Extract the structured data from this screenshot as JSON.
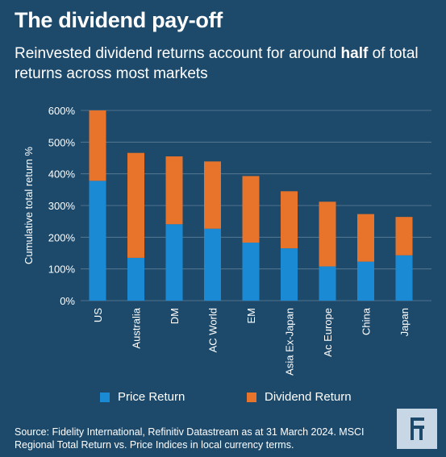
{
  "header": {
    "title": "The dividend pay-off",
    "subtitle_pre": "Reinvested dividend returns account for around ",
    "subtitle_bold": "half",
    "subtitle_post": " of total returns across most markets"
  },
  "colors": {
    "background": "#1d4a6b",
    "price": "#1a8ad4",
    "dividend": "#e8732a",
    "grid": "#5f7f97"
  },
  "chart_data": {
    "type": "bar",
    "stacked": true,
    "categories": [
      "US",
      "Australia",
      "DM",
      "AC World",
      "EM",
      "Asia Ex-Japan",
      "Ac Europe",
      "China",
      "Japan"
    ],
    "series": [
      {
        "name": "Price Return",
        "color": "#1a8ad4",
        "values": [
          378,
          135,
          241,
          227,
          183,
          165,
          108,
          123,
          143
        ]
      },
      {
        "name": "Dividend Return",
        "color": "#e8732a",
        "values": [
          222,
          331,
          214,
          212,
          210,
          180,
          204,
          150,
          121
        ]
      }
    ],
    "ylabel": "Cumulative total return %",
    "ylim": [
      0,
      600
    ],
    "yticks": [
      "0%",
      "100%",
      "200%",
      "300%",
      "400%",
      "500%",
      "600%"
    ],
    "grid": true,
    "legend_position": "bottom"
  },
  "legend": {
    "price_label": "Price Return",
    "dividend_label": "Dividend Return"
  },
  "footer": {
    "source": "Source: Fidelity International, Refinitiv Datastream as at 31 March 2024. MSCI Regional Total Return vs. Price Indices in local currency terms.",
    "logo_icon": "fidelity-f-logo-icon"
  }
}
